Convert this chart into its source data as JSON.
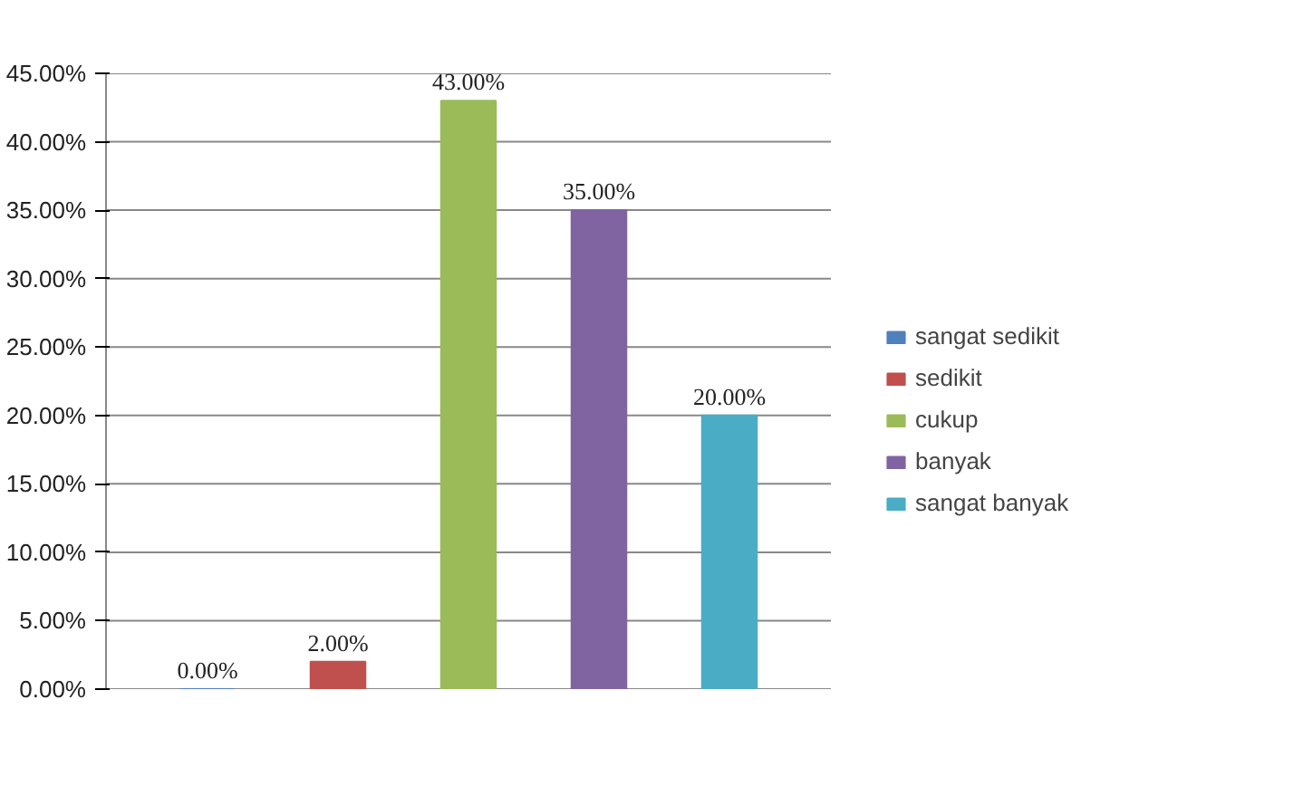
{
  "chart_data": {
    "type": "bar",
    "categories": [
      null
    ],
    "series": [
      {
        "name": "sangat sedikit",
        "color": "#4f81bd",
        "values": [
          0
        ],
        "value_labels": [
          "0.00%"
        ]
      },
      {
        "name": "sedikit",
        "color": "#c0504d",
        "values": [
          2
        ],
        "value_labels": [
          "2.00%"
        ]
      },
      {
        "name": "cukup",
        "color": "#9bbb59",
        "values": [
          43
        ],
        "value_labels": [
          "43.00%"
        ]
      },
      {
        "name": "banyak",
        "color": "#8064a2",
        "values": [
          35
        ],
        "value_labels": [
          "35.00%"
        ]
      },
      {
        "name": "sangat banyak",
        "color": "#4bacc6",
        "values": [
          20
        ],
        "value_labels": [
          "20.00%"
        ]
      }
    ],
    "ylim": [
      0,
      45
    ],
    "yticks": [
      {
        "value": 0,
        "label": "0.00%"
      },
      {
        "value": 5,
        "label": "5.00%"
      },
      {
        "value": 10,
        "label": "10.00%"
      },
      {
        "value": 15,
        "label": "15.00%"
      },
      {
        "value": 20,
        "label": "20.00%"
      },
      {
        "value": 25,
        "label": "25.00%"
      },
      {
        "value": 30,
        "label": "30.00%"
      },
      {
        "value": 35,
        "label": "35.00%"
      },
      {
        "value": 40,
        "label": "40.00%"
      },
      {
        "value": 45,
        "label": "45.00%"
      }
    ],
    "grid": "y",
    "legend": "right"
  }
}
